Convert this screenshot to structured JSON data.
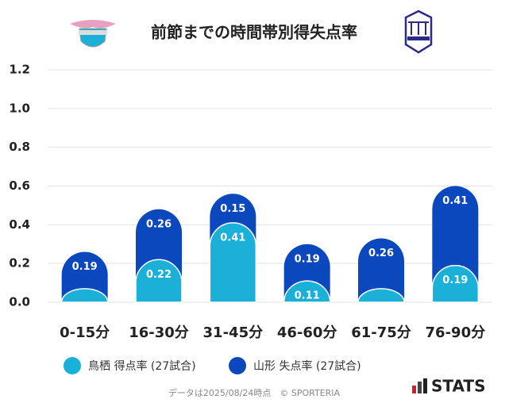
{
  "chart_data": {
    "type": "stacked-bar",
    "title": "前節までの時間帯別得失点率",
    "categories": [
      "0-15分",
      "16-30分",
      "31-45分",
      "46-60分",
      "61-75分",
      "76-90分"
    ],
    "series": [
      {
        "name": "鳥栖 得点率 (27試合)",
        "color": "#1ab0d8",
        "values": [
          0.07,
          0.22,
          0.41,
          0.11,
          0.07,
          0.19
        ],
        "value_labels": [
          null,
          "0.22",
          "0.41",
          "0.11",
          null,
          "0.19"
        ]
      },
      {
        "name": "山形 失点率 (27試合)",
        "color": "#0b47bd",
        "values": [
          0.19,
          0.26,
          0.15,
          0.19,
          0.26,
          0.41
        ]
      }
    ],
    "ylim": [
      0,
      1.2
    ],
    "yticks": [
      {
        "value": 0,
        "label": "0.0"
      },
      0.2,
      0.4,
      0.6,
      0.8,
      {
        "value": 1,
        "label": "1.0"
      },
      1.2
    ],
    "grid": true,
    "footer": "データは2025/08/24時点　© SPORTERIA",
    "brand": "STATS"
  }
}
